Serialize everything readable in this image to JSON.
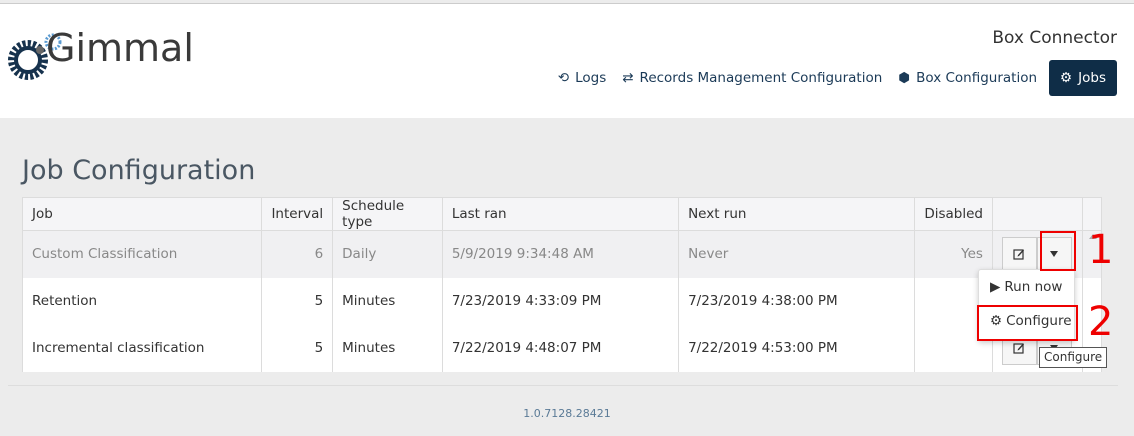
{
  "app": {
    "logo_text": "Gimmal",
    "title": "Box Connector"
  },
  "nav": [
    {
      "label": "Logs",
      "icon": "history-icon"
    },
    {
      "label": "Records Management Configuration",
      "icon": "exchange-icon"
    },
    {
      "label": "Box Configuration",
      "icon": "cube-icon"
    },
    {
      "label": "Jobs",
      "icon": "gear-icon",
      "active": true
    }
  ],
  "page_title": "Job Configuration",
  "table": {
    "headers": [
      "Job",
      "Interval",
      "Schedule type",
      "Last ran",
      "Next run",
      "Disabled",
      ""
    ],
    "rows": [
      {
        "job": "Custom Classification",
        "interval": "6",
        "schedule": "Daily",
        "last_ran": "5/9/2019 9:34:48 AM",
        "next_run": "Never",
        "disabled": "Yes"
      },
      {
        "job": "Retention",
        "interval": "5",
        "schedule": "Minutes",
        "last_ran": "7/23/2019 4:33:09 PM",
        "next_run": "7/23/2019 4:38:00 PM",
        "disabled": ""
      },
      {
        "job": "Incremental classification",
        "interval": "5",
        "schedule": "Minutes",
        "last_ran": "7/22/2019 4:48:07 PM",
        "next_run": "7/22/2019 4:53:00 PM",
        "disabled": ""
      }
    ]
  },
  "menu": {
    "run_now": "Run now",
    "configure": "Configure"
  },
  "tooltip": "Configure",
  "markers": [
    "1",
    "2"
  ],
  "version": "1.0.7128.28421",
  "colors": {
    "brand": "#0f2d47",
    "annotation": "#e00000"
  }
}
